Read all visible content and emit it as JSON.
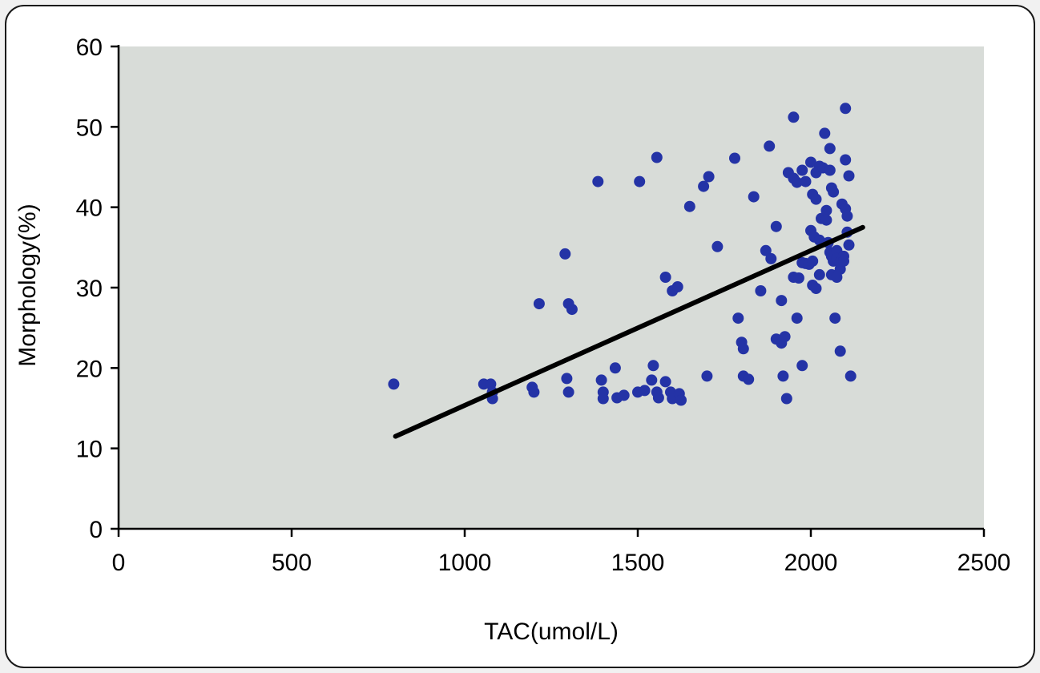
{
  "chart_data": {
    "type": "scatter",
    "title": "",
    "xlabel": "TAC(umol/L)",
    "ylabel": "Morphology(%)",
    "xlim": [
      0,
      2500
    ],
    "ylim": [
      0,
      60
    ],
    "xticks": [
      0,
      500,
      1000,
      1500,
      2000,
      2500
    ],
    "yticks": [
      0,
      10,
      20,
      30,
      40,
      50,
      60
    ],
    "grid": false,
    "legend": "none",
    "colors": {
      "point": "#2433a6",
      "trendline": "#000000",
      "plot_bg": "#d8dcd8",
      "axis": "#000000"
    },
    "trendline": {
      "x1": 800,
      "y1": 11.5,
      "x2": 2150,
      "y2": 37.5
    },
    "points": [
      [
        795,
        18
      ],
      [
        1055,
        18
      ],
      [
        1075,
        18
      ],
      [
        1080,
        17
      ],
      [
        1080,
        16.2
      ],
      [
        1195,
        17.6
      ],
      [
        1200,
        17
      ],
      [
        1215,
        28
      ],
      [
        1290,
        34.2
      ],
      [
        1300,
        28
      ],
      [
        1310,
        27.3
      ],
      [
        1295,
        18.7
      ],
      [
        1300,
        17
      ],
      [
        1385,
        43.2
      ],
      [
        1395,
        18.5
      ],
      [
        1400,
        17
      ],
      [
        1400,
        16.2
      ],
      [
        1435,
        20
      ],
      [
        1440,
        16.3
      ],
      [
        1505,
        43.2
      ],
      [
        1460,
        16.6
      ],
      [
        1500,
        17
      ],
      [
        1520,
        17.2
      ],
      [
        1555,
        46.2
      ],
      [
        1545,
        20.3
      ],
      [
        1540,
        18.5
      ],
      [
        1555,
        17
      ],
      [
        1560,
        16.3
      ],
      [
        1580,
        18.3
      ],
      [
        1595,
        17
      ],
      [
        1600,
        16.2
      ],
      [
        1580,
        31.3
      ],
      [
        1600,
        29.6
      ],
      [
        1615,
        30.1
      ],
      [
        1620,
        16.8
      ],
      [
        1625,
        16
      ],
      [
        1650,
        40.1
      ],
      [
        1690,
        42.6
      ],
      [
        1705,
        43.8
      ],
      [
        1700,
        19
      ],
      [
        1730,
        35.1
      ],
      [
        1780,
        46.1
      ],
      [
        1790,
        26.2
      ],
      [
        1800,
        23.2
      ],
      [
        1805,
        22.4
      ],
      [
        1805,
        19
      ],
      [
        1820,
        18.6
      ],
      [
        1835,
        41.3
      ],
      [
        1855,
        29.6
      ],
      [
        1870,
        34.6
      ],
      [
        1885,
        33.6
      ],
      [
        1880,
        47.6
      ],
      [
        1900,
        37.6
      ],
      [
        1900,
        23.6
      ],
      [
        1915,
        23.1
      ],
      [
        1925,
        23.9
      ],
      [
        1915,
        28.4
      ],
      [
        1920,
        19
      ],
      [
        1930,
        16.2
      ],
      [
        1935,
        44.3
      ],
      [
        1950,
        51.2
      ],
      [
        1950,
        43.6
      ],
      [
        1960,
        43.1
      ],
      [
        1975,
        44.6
      ],
      [
        1985,
        43.2
      ],
      [
        1950,
        31.3
      ],
      [
        1965,
        31.2
      ],
      [
        1975,
        33.1
      ],
      [
        1985,
        33
      ],
      [
        1995,
        32.9
      ],
      [
        1960,
        26.2
      ],
      [
        1975,
        20.3
      ],
      [
        2000,
        45.6
      ],
      [
        2015,
        44.3
      ],
      [
        2025,
        45.1
      ],
      [
        2005,
        41.6
      ],
      [
        2015,
        41
      ],
      [
        2000,
        37.1
      ],
      [
        2010,
        36.3
      ],
      [
        2025,
        35.9
      ],
      [
        2005,
        33.3
      ],
      [
        2005,
        30.3
      ],
      [
        2015,
        29.9
      ],
      [
        2025,
        31.6
      ],
      [
        2030,
        38.6
      ],
      [
        2045,
        39.6
      ],
      [
        2045,
        38.4
      ],
      [
        2035,
        44.9
      ],
      [
        2040,
        49.2
      ],
      [
        2055,
        47.3
      ],
      [
        2055,
        44.6
      ],
      [
        2060,
        42.4
      ],
      [
        2065,
        41.9
      ],
      [
        2050,
        35.6
      ],
      [
        2055,
        34.4
      ],
      [
        2060,
        33.9
      ],
      [
        2065,
        33.3
      ],
      [
        2075,
        34.6
      ],
      [
        2075,
        33.6
      ],
      [
        2085,
        33.2
      ],
      [
        2085,
        32.3
      ],
      [
        2095,
        33.9
      ],
      [
        2095,
        33.3
      ],
      [
        2060,
        31.6
      ],
      [
        2075,
        31.3
      ],
      [
        2070,
        26.2
      ],
      [
        2085,
        22.1
      ],
      [
        2090,
        40.4
      ],
      [
        2100,
        39.8
      ],
      [
        2105,
        38.9
      ],
      [
        2100,
        52.3
      ],
      [
        2100,
        45.9
      ],
      [
        2110,
        43.9
      ],
      [
        2105,
        36.9
      ],
      [
        2110,
        35.3
      ],
      [
        2115,
        19
      ]
    ]
  }
}
